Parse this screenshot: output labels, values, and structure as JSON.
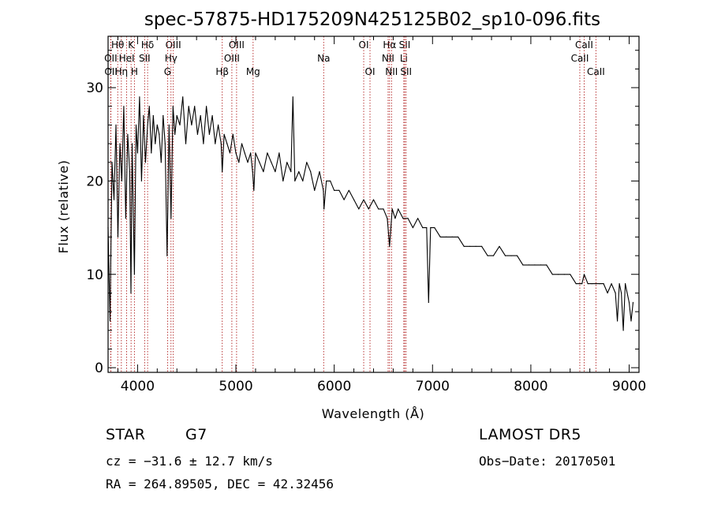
{
  "chart_data": {
    "type": "line",
    "title": "spec-57875-HD175209N425125B02_sp10-096.fits",
    "xlabel": "Wavelength (Å)",
    "ylabel": "Flux (relative)",
    "xlim": [
      3700,
      9100
    ],
    "ylim": [
      -0.5,
      35.5
    ],
    "x_ticks": [
      4000,
      5000,
      6000,
      7000,
      8000,
      9000
    ],
    "y_ticks": [
      0,
      10,
      20,
      30
    ],
    "grid": false,
    "legend": "none",
    "series": [
      {
        "x": [
          3700,
          3720,
          3740,
          3760,
          3780,
          3800,
          3820,
          3840,
          3860,
          3880,
          3900,
          3920,
          3933,
          3945,
          3968,
          3985,
          4000,
          4020,
          4040,
          4060,
          4080,
          4102,
          4120,
          4140,
          4160,
          4180,
          4200,
          4220,
          4240,
          4260,
          4280,
          4300,
          4320,
          4340,
          4360,
          4380,
          4400,
          4430,
          4460,
          4490,
          4520,
          4550,
          4580,
          4610,
          4640,
          4670,
          4700,
          4730,
          4760,
          4790,
          4820,
          4850,
          4861,
          4880,
          4910,
          4940,
          4970,
          5000,
          5030,
          5060,
          5090,
          5120,
          5150,
          5170,
          5183,
          5200,
          5240,
          5280,
          5320,
          5360,
          5400,
          5440,
          5480,
          5520,
          5560,
          5580,
          5600,
          5640,
          5680,
          5720,
          5760,
          5800,
          5850,
          5890,
          5896,
          5920,
          5960,
          6000,
          6050,
          6100,
          6150,
          6200,
          6250,
          6300,
          6350,
          6400,
          6450,
          6500,
          6540,
          6563,
          6590,
          6620,
          6650,
          6700,
          6750,
          6800,
          6850,
          6900,
          6940,
          6960,
          6980,
          7020,
          7080,
          7140,
          7200,
          7260,
          7320,
          7380,
          7440,
          7500,
          7560,
          7620,
          7680,
          7740,
          7800,
          7860,
          7920,
          7980,
          8040,
          8100,
          8160,
          8220,
          8280,
          8340,
          8400,
          8460,
          8498,
          8520,
          8542,
          8580,
          8620,
          8662,
          8700,
          8740,
          8780,
          8820,
          8860,
          8880,
          8900,
          8920,
          8940,
          8960,
          8980,
          9000,
          9020,
          9040
        ],
        "y": [
          15,
          5,
          22,
          18,
          26,
          14,
          24,
          20,
          28,
          16,
          25,
          21,
          8,
          24,
          10,
          26,
          23,
          29,
          20,
          27,
          22,
          26,
          28,
          23,
          27,
          24,
          26,
          25,
          22,
          27,
          24,
          12,
          26,
          16,
          28,
          25,
          27,
          26,
          29,
          24,
          28,
          26,
          28,
          25,
          27,
          24,
          28,
          25,
          27,
          24,
          26,
          24,
          21,
          25,
          24,
          23,
          25,
          23,
          22,
          24,
          23,
          22,
          23,
          21,
          19,
          23,
          22,
          21,
          23,
          22,
          21,
          23,
          20,
          22,
          21,
          29,
          20,
          21,
          20,
          22,
          21,
          19,
          21,
          19,
          17,
          20,
          20,
          19,
          19,
          18,
          19,
          18,
          17,
          18,
          17,
          18,
          17,
          17,
          16,
          13,
          17,
          16,
          17,
          16,
          16,
          15,
          16,
          15,
          15,
          7,
          15,
          15,
          14,
          14,
          14,
          14,
          13,
          13,
          13,
          13,
          12,
          12,
          13,
          12,
          12,
          12,
          11,
          11,
          11,
          11,
          11,
          10,
          10,
          10,
          10,
          9,
          9,
          9,
          10,
          9,
          9,
          9,
          9,
          9,
          8,
          9,
          8,
          5,
          9,
          8,
          4,
          9,
          8,
          7,
          5,
          7
        ]
      }
    ],
    "lines": {
      "top": [
        {
          "label": "Hθ",
          "wl": 3798
        },
        {
          "label": "K",
          "wl": 3934
        },
        {
          "label": "Hδ",
          "wl": 4102
        },
        {
          "label": "OIII",
          "wl": 4363
        },
        {
          "label": "OIII",
          "wl": 5007
        },
        {
          "label": "OI",
          "wl": 6300
        },
        {
          "label": "Hα",
          "wl": 6563
        },
        {
          "label": "SII",
          "wl": 6717
        },
        {
          "label": "CaII",
          "wl": 8542
        }
      ],
      "middle": [
        {
          "label": "OII",
          "wl": 3727
        },
        {
          "label": "HeI",
          "wl": 3889
        },
        {
          "label": "SII",
          "wl": 4072
        },
        {
          "label": "Hγ",
          "wl": 4340
        },
        {
          "label": "OIII",
          "wl": 4959
        },
        {
          "label": "Na",
          "wl": 5893
        },
        {
          "label": "NII",
          "wl": 6548
        },
        {
          "label": "Li",
          "wl": 6708
        },
        {
          "label": "CaII",
          "wl": 8498
        }
      ],
      "bottom": [
        {
          "label": "OII",
          "wl": 3729
        },
        {
          "label": "Hη",
          "wl": 3835
        },
        {
          "label": "H",
          "wl": 3968
        },
        {
          "label": "G",
          "wl": 4305
        },
        {
          "label": "Hβ",
          "wl": 4861
        },
        {
          "label": "Mg",
          "wl": 5175
        },
        {
          "label": "OI",
          "wl": 6364
        },
        {
          "label": "NII",
          "wl": 6583
        },
        {
          "label": "SII",
          "wl": 6731
        },
        {
          "label": "CaII",
          "wl": 8662
        }
      ]
    }
  },
  "info": {
    "class_label": "STAR",
    "subclass": "G7",
    "survey": "LAMOST DR5",
    "cz_text": "cz = −31.6 ± 12.7 km/s",
    "obs_date_text": "Obs−Date: 20170501",
    "radec_text": "RA = 264.89505, DEC =  42.32456"
  }
}
